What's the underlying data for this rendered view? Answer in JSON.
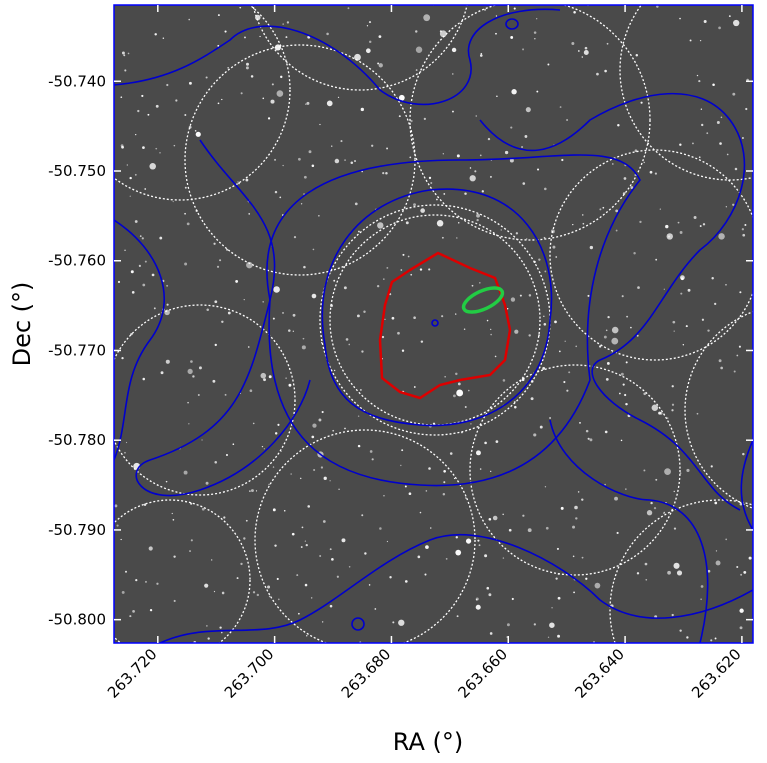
{
  "chart_data": {
    "type": "image",
    "xlabel": "RA (°)",
    "ylabel": "Dec (°)",
    "xlim": [
      263.7275,
      263.6181
    ],
    "ylim": [
      -50.8026,
      -50.7315
    ],
    "xticks": [
      {
        "value": 263.72,
        "label": "263.720"
      },
      {
        "value": 263.7,
        "label": "263.700"
      },
      {
        "value": 263.68,
        "label": "263.680"
      },
      {
        "value": 263.66,
        "label": "263.660"
      },
      {
        "value": 263.64,
        "label": "263.640"
      },
      {
        "value": 263.62,
        "label": "263.620"
      }
    ],
    "yticks": [
      {
        "value": -50.74,
        "label": "-50.740"
      },
      {
        "value": -50.75,
        "label": "-50.750"
      },
      {
        "value": -50.76,
        "label": "-50.760"
      },
      {
        "value": -50.77,
        "label": "-50.770"
      },
      {
        "value": -50.78,
        "label": "-50.780"
      },
      {
        "value": -50.79,
        "label": "-50.790"
      },
      {
        "value": -50.8,
        "label": "-50.800"
      }
    ]
  }
}
